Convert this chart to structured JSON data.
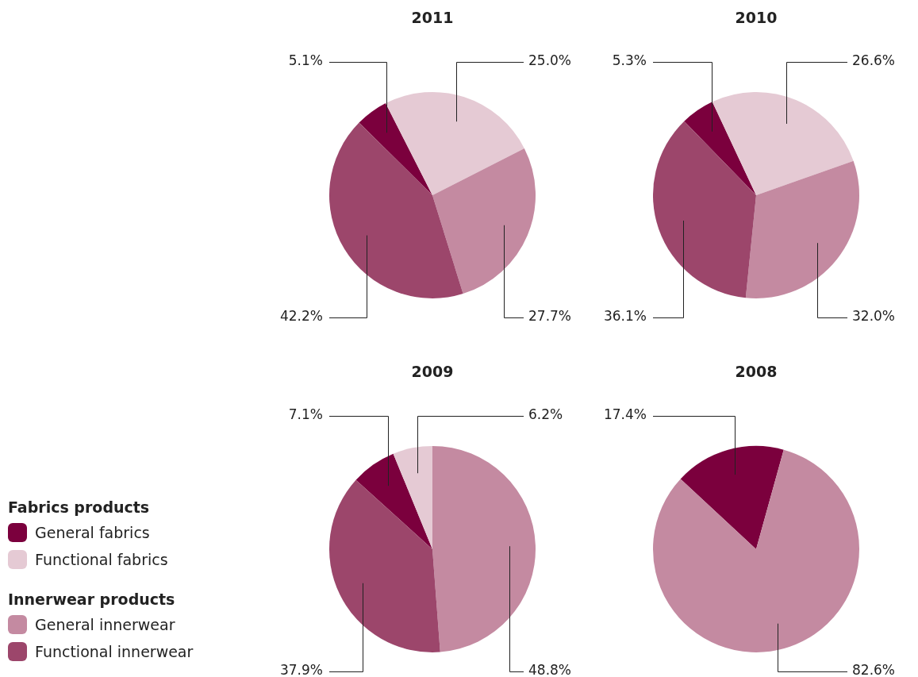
{
  "chart_data": [
    {
      "type": "pie",
      "title": "2011",
      "categories": [
        "General fabrics",
        "Functional fabrics",
        "General innerwear",
        "Functional innerwear"
      ],
      "values": [
        5.1,
        25.0,
        27.7,
        42.2
      ],
      "value_labels": [
        "5.1%",
        "25.0%",
        "27.7%",
        "42.2%"
      ],
      "colors": [
        "#7b003d",
        "#e5cad4",
        "#c48aa1",
        "#9c466b"
      ],
      "legend": "left",
      "annotations": [
        "Fabrics products",
        "Innerwear products"
      ]
    },
    {
      "type": "pie",
      "title": "2010",
      "categories": [
        null,
        null,
        null,
        null
      ],
      "values": [
        5.3,
        26.6,
        32.0,
        36.1
      ],
      "value_labels": [
        "5.3%",
        "26.6%",
        "32.0%",
        "36.1%"
      ],
      "colors": [
        "#7b003d",
        "#e5cad4",
        "#c48aa1",
        "#9c466b"
      ]
    },
    {
      "type": "pie",
      "title": "2009",
      "categories": [
        null,
        null,
        null,
        null
      ],
      "values": [
        7.1,
        6.2,
        48.8,
        37.9
      ],
      "value_labels": [
        "7.1%",
        "6.2%",
        "48.8%",
        "37.9%"
      ],
      "colors": [
        "#7b003d",
        "#e5cad4",
        "#c48aa1",
        "#9c466b"
      ]
    },
    {
      "type": "pie",
      "title": "2008",
      "categories": [
        null,
        null
      ],
      "values": [
        17.4,
        82.6
      ],
      "value_labels": [
        "17.4%",
        "82.6%"
      ],
      "colors": [
        "#7b003d",
        "#c48aa1"
      ]
    }
  ]
}
